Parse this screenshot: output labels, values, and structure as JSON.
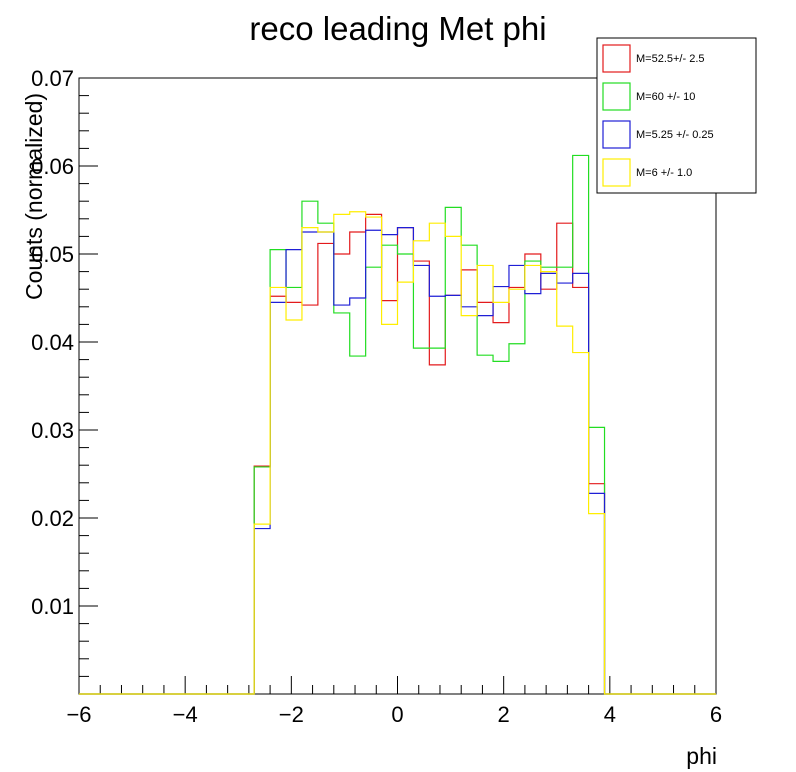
{
  "chart_data": {
    "type": "histogram-step",
    "title": "reco leading Met phi",
    "xlabel": "phi",
    "ylabel": "Counts (normalized)",
    "xlim": [
      -6,
      6
    ],
    "ylim": [
      0,
      0.07
    ],
    "xticks": [
      -6,
      -4,
      -2,
      0,
      2,
      4,
      6
    ],
    "yticks": [
      0.01,
      0.02,
      0.03,
      0.04,
      0.05,
      0.06,
      0.07
    ],
    "x_start": -6,
    "bin_width": 0.3,
    "grid": false,
    "legend_position": "top-right",
    "series": [
      {
        "name": "M=52.5+/- 2.5",
        "color": "#e31a1c",
        "values": [
          0,
          0,
          0,
          0,
          0,
          0,
          0,
          0,
          0,
          0,
          0,
          0.0259,
          0.0452,
          0.0445,
          0.0442,
          0.0512,
          0.05,
          0.0525,
          0.0545,
          0.0447,
          0.053,
          0.0492,
          0.0374,
          0.0453,
          0.0482,
          0.0445,
          0.0422,
          0.0462,
          0.05,
          0.046,
          0.0535,
          0.0462,
          0.0239,
          0,
          0,
          0,
          0,
          0,
          0,
          0
        ]
      },
      {
        "name": "M=60 +/- 10",
        "color": "#22dd22",
        "values": [
          0,
          0,
          0,
          0,
          0,
          0,
          0,
          0,
          0,
          0,
          0,
          0.0258,
          0.0505,
          0.0462,
          0.056,
          0.0535,
          0.0433,
          0.0384,
          0.0485,
          0.051,
          0.05,
          0.0393,
          0.0393,
          0.0553,
          0.051,
          0.0385,
          0.0378,
          0.0398,
          0.0492,
          0.0485,
          0.0485,
          0.0612,
          0.0303,
          0,
          0,
          0,
          0,
          0,
          0,
          0
        ]
      },
      {
        "name": "M=5.25 +/- 0.25",
        "color": "#1f1fd6",
        "values": [
          0,
          0,
          0,
          0,
          0,
          0,
          0,
          0,
          0,
          0,
          0,
          0.0188,
          0.0445,
          0.0505,
          0.0525,
          0.0525,
          0.0442,
          0.045,
          0.0527,
          0.0522,
          0.053,
          0.0487,
          0.0452,
          0.0453,
          0.044,
          0.043,
          0.0463,
          0.0487,
          0.0455,
          0.0478,
          0.0467,
          0.0478,
          0.0228,
          0,
          0,
          0,
          0,
          0,
          0,
          0
        ]
      },
      {
        "name": "M=6 +/- 1.0",
        "color": "#ffee00",
        "values": [
          0,
          0,
          0,
          0,
          0,
          0,
          0,
          0,
          0,
          0,
          0,
          0.0193,
          0.0462,
          0.0425,
          0.053,
          0.0525,
          0.0545,
          0.0548,
          0.0542,
          0.042,
          0.0468,
          0.0515,
          0.0535,
          0.052,
          0.043,
          0.0487,
          0.0445,
          0.046,
          0.0487,
          0.048,
          0.0418,
          0.0388,
          0.0205,
          0,
          0,
          0,
          0,
          0,
          0,
          0
        ]
      }
    ]
  }
}
